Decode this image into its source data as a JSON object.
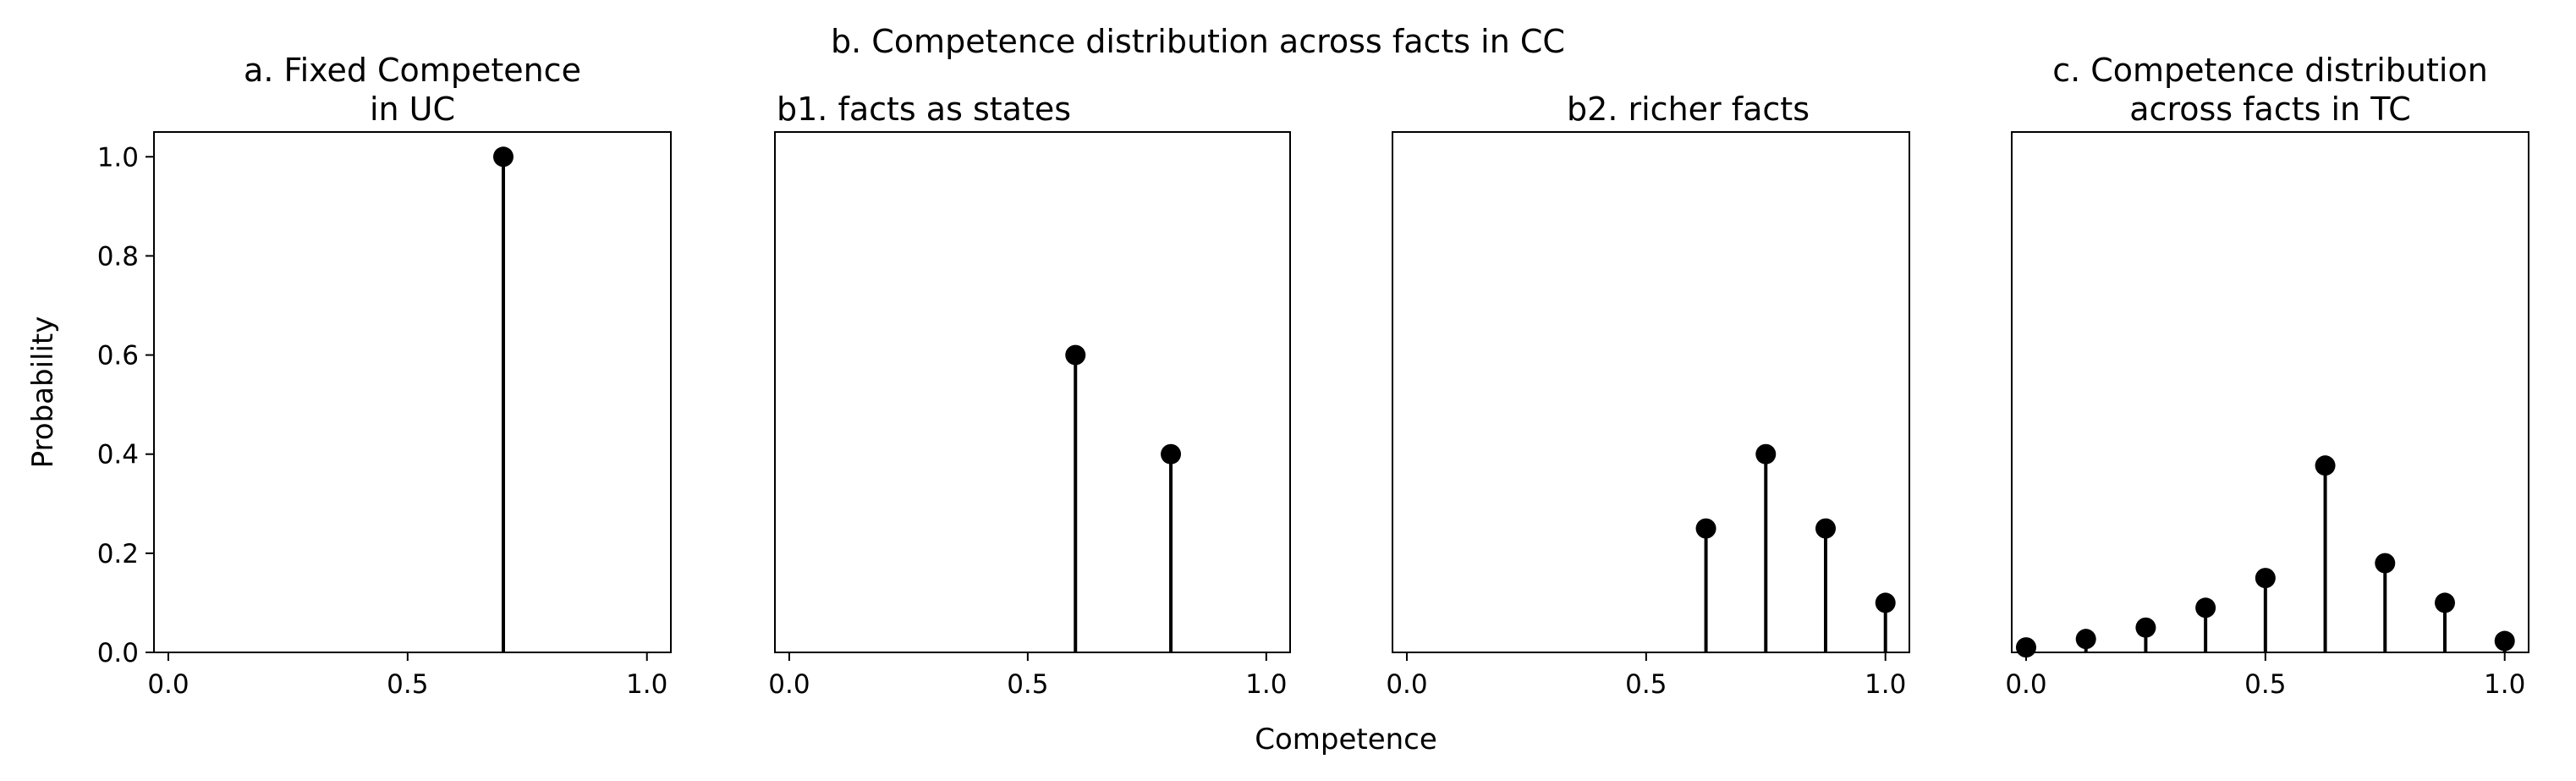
{
  "group_title": "b. Competence distribution across facts in CC",
  "xlabel": "Competence",
  "chart_data": [
    {
      "type": "stem",
      "title_lines": [
        "a. Fixed Competence",
        "in UC"
      ],
      "ylabel": "Probability",
      "x": [
        0.7
      ],
      "values": [
        1.0
      ],
      "color": "#000000",
      "xlim": [
        -0.03,
        1.05
      ],
      "ylim": [
        0,
        1.05
      ],
      "xticks": [
        {
          "value": 0,
          "label": "0.0"
        },
        {
          "value": 0.5,
          "label": "0.5"
        },
        {
          "value": 1,
          "label": "1.0"
        }
      ],
      "yticks": [
        {
          "value": 0,
          "label": "0.0"
        },
        {
          "value": 0.2,
          "label": "0.2"
        },
        {
          "value": 0.4,
          "label": "0.4"
        },
        {
          "value": 0.6,
          "label": "0.6"
        },
        {
          "value": 0.8,
          "label": "0.8"
        },
        {
          "value": 1,
          "label": "1.0"
        }
      ]
    },
    {
      "type": "stem",
      "title_lines": [
        "b1. facts as states"
      ],
      "x": [
        0.6,
        0.8
      ],
      "values": [
        0.6,
        0.4
      ],
      "color": "#000000",
      "xlim": [
        -0.03,
        1.05
      ],
      "ylim": [
        0,
        1.05
      ],
      "xticks": [
        {
          "value": 0,
          "label": "0.0"
        },
        {
          "value": 0.5,
          "label": "0.5"
        },
        {
          "value": 1,
          "label": "1.0"
        }
      ]
    },
    {
      "type": "stem",
      "title_lines": [
        "b2. richer facts"
      ],
      "x": [
        0.625,
        0.75,
        0.875,
        1.0
      ],
      "values": [
        0.25,
        0.4,
        0.25,
        0.1
      ],
      "color": "#000000",
      "xlim": [
        -0.03,
        1.05
      ],
      "ylim": [
        0,
        1.05
      ],
      "xticks": [
        {
          "value": 0,
          "label": "0.0"
        },
        {
          "value": 0.5,
          "label": "0.5"
        },
        {
          "value": 1,
          "label": "1.0"
        }
      ]
    },
    {
      "type": "stem",
      "title_lines": [
        "c. Competence distribution",
        "across facts in TC"
      ],
      "x": [
        0,
        0.125,
        0.25,
        0.375,
        0.5,
        0.625,
        0.75,
        0.875,
        1.0
      ],
      "values": [
        0.01,
        0.027,
        0.05,
        0.09,
        0.15,
        0.377,
        0.18,
        0.1,
        0.023
      ],
      "color": "#000000",
      "xlim": [
        -0.03,
        1.05
      ],
      "ylim": [
        0,
        1.05
      ],
      "xticks": [
        {
          "value": 0,
          "label": "0.0"
        },
        {
          "value": 0.5,
          "label": "0.5"
        },
        {
          "value": 1,
          "label": "1.0"
        }
      ]
    }
  ]
}
